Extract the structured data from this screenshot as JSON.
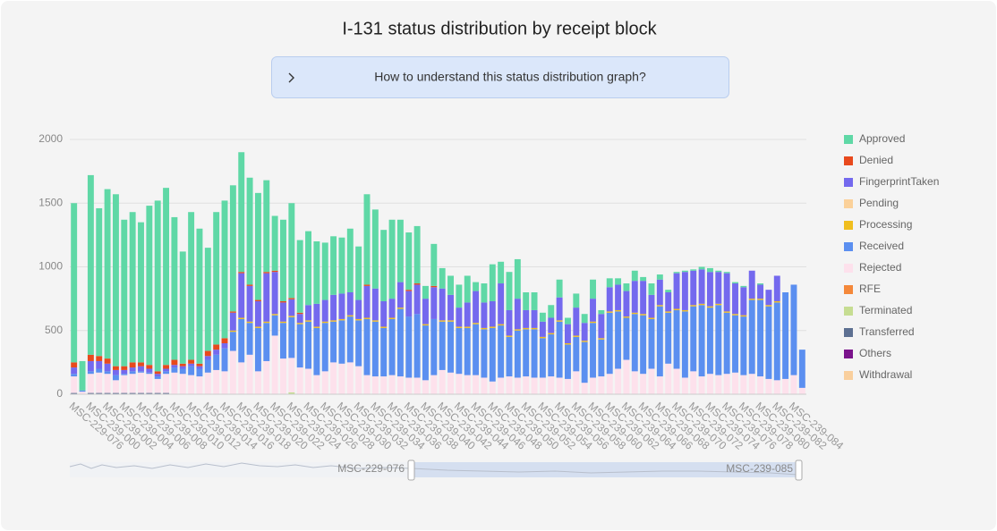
{
  "chart_data": {
    "type": "bar",
    "stacked": true,
    "title": "I-131 status distribution by receipt block",
    "help_text": "How to understand this status distribution graph?",
    "categories": [
      "MSC-229-076",
      null,
      "MSC-239-000",
      null,
      "MSC-239-002",
      null,
      "MSC-239-004",
      null,
      "MSC-239-006",
      null,
      "MSC-239-008",
      null,
      "MSC-239-010",
      null,
      "MSC-239-012",
      null,
      "MSC-239-014",
      null,
      "MSC-239-016",
      null,
      "MSC-239-018",
      null,
      "MSC-239-020",
      null,
      "MSC-239-022",
      null,
      "MSC-239-024",
      null,
      "MSC-239-026",
      null,
      "MSC-239-028",
      null,
      "MSC-239-030",
      null,
      "MSC-239-032",
      null,
      "MSC-239-034",
      null,
      "MSC-239-036",
      null,
      "MSC-239-038",
      null,
      "MSC-239-040",
      null,
      "MSC-239-042",
      null,
      "MSC-239-044",
      null,
      "MSC-239-046",
      null,
      "MSC-239-048",
      null,
      "MSC-239-050",
      null,
      "MSC-239-052",
      null,
      "MSC-239-054",
      null,
      "MSC-239-056",
      null,
      "MSC-239-058",
      null,
      "MSC-239-060",
      null,
      "MSC-239-062",
      null,
      "MSC-239-064",
      null,
      "MSC-239-066",
      null,
      "MSC-239-068",
      null,
      "MSC-239-070",
      null,
      "MSC-239-072",
      null,
      "MSC-239-074",
      null,
      "MSC-239-076",
      null,
      "MSC-239-078",
      null,
      "MSC-239-080",
      null,
      "MSC-239-082",
      null,
      "MSC-239-084",
      "MSC-239-085"
    ],
    "series": [
      {
        "name": "Approved",
        "color": "#5fd8a6",
        "values": [
          1250,
          230,
          1410,
          1160,
          1330,
          1350,
          1150,
          1180,
          1100,
          1250,
          1340,
          1390,
          1120,
          880,
          1160,
          1060,
          810,
          1040,
          1080,
          990,
          940,
          840,
          840,
          720,
          430,
          640,
          745,
          570,
          580,
          490,
          450,
          460,
          440,
          500,
          420,
          710,
          620,
          560,
          620,
          490,
          450,
          450,
          100,
          330,
          160,
          150,
          180,
          210,
          70,
          150,
          290,
          170,
          300,
          310,
          140,
          140,
          70,
          100,
          140,
          50,
          110,
          70,
          150,
          30,
          70,
          50,
          60,
          80,
          30,
          90,
          40,
          20,
          10,
          10,
          10,
          20,
          30,
          10,
          10,
          10,
          10,
          0,
          10,
          0,
          0,
          0,
          0,
          0
        ]
      },
      {
        "name": "Denied",
        "color": "#e8491d",
        "values": [
          40,
          0,
          50,
          40,
          40,
          30,
          30,
          40,
          30,
          30,
          20,
          30,
          40,
          20,
          30,
          20,
          40,
          40,
          40,
          10,
          10,
          10,
          10,
          10,
          10,
          10,
          10,
          10,
          0,
          0,
          0,
          0,
          0,
          0,
          0,
          10,
          0,
          0,
          0,
          0,
          10,
          10,
          0,
          10,
          0,
          0,
          0,
          0,
          0,
          0,
          0,
          0,
          0,
          0,
          0,
          0,
          0,
          0,
          0,
          0,
          0,
          0,
          0,
          0,
          0,
          0,
          0,
          0,
          0,
          0,
          0,
          0,
          0,
          0,
          0,
          0,
          0,
          0,
          0,
          0,
          0,
          0,
          0,
          0,
          0,
          0,
          0,
          0
        ]
      },
      {
        "name": "FingerprintTaken",
        "color": "#7469ee",
        "values": [
          50,
          0,
          80,
          60,
          60,
          40,
          30,
          30,
          40,
          30,
          20,
          20,
          20,
          20,
          20,
          20,
          30,
          40,
          40,
          140,
          350,
          280,
          200,
          380,
          330,
          150,
          130,
          70,
          120,
          180,
          170,
          200,
          200,
          180,
          150,
          250,
          250,
          200,
          150,
          200,
          200,
          230,
          200,
          250,
          250,
          200,
          150,
          190,
          250,
          200,
          200,
          320,
          200,
          240,
          140,
          140,
          120,
          120,
          180,
          150,
          220,
          140,
          180,
          190,
          190,
          200,
          200,
          250,
          260,
          180,
          200,
          150,
          280,
          300,
          270,
          270,
          270,
          250,
          300,
          240,
          220,
          220,
          110,
          120,
          200,
          0,
          0,
          0
        ]
      },
      {
        "name": "Pending",
        "color": "#fbd19a",
        "values": [
          0,
          0,
          0,
          0,
          0,
          0,
          0,
          0,
          0,
          0,
          0,
          0,
          0,
          0,
          0,
          0,
          0,
          0,
          0,
          0,
          0,
          0,
          0,
          0,
          0,
          0,
          0,
          0,
          0,
          0,
          0,
          0,
          0,
          0,
          0,
          0,
          0,
          0,
          0,
          0,
          0,
          0,
          0,
          0,
          0,
          0,
          0,
          0,
          0,
          0,
          0,
          0,
          0,
          0,
          0,
          0,
          0,
          0,
          0,
          0,
          0,
          0,
          0,
          0,
          0,
          0,
          0,
          0,
          0,
          0,
          0,
          0,
          0,
          0,
          0,
          0,
          0,
          0,
          0,
          0,
          0,
          0,
          0,
          0,
          0,
          0,
          0,
          0
        ]
      },
      {
        "name": "Processing",
        "color": "#f0be1e",
        "values": [
          0,
          0,
          0,
          0,
          0,
          0,
          0,
          0,
          0,
          0,
          0,
          0,
          0,
          0,
          0,
          0,
          0,
          0,
          0,
          10,
          10,
          10,
          10,
          10,
          10,
          10,
          10,
          10,
          10,
          10,
          10,
          10,
          10,
          10,
          10,
          10,
          10,
          10,
          10,
          10,
          0,
          0,
          10,
          0,
          10,
          10,
          10,
          10,
          10,
          10,
          10,
          10,
          10,
          10,
          10,
          10,
          10,
          10,
          10,
          10,
          10,
          10,
          10,
          10,
          10,
          10,
          10,
          10,
          10,
          10,
          10,
          10,
          10,
          10,
          10,
          10,
          10,
          10,
          10,
          10,
          10,
          10,
          10,
          10,
          10,
          0,
          0,
          0
        ]
      },
      {
        "name": "Received",
        "color": "#5b8ff0",
        "values": [
          20,
          10,
          20,
          30,
          20,
          40,
          10,
          20,
          10,
          10,
          20,
          20,
          40,
          40,
          70,
          60,
          100,
          120,
          180,
          150,
          340,
          250,
          340,
          300,
          160,
          280,
          320,
          340,
          370,
          370,
          380,
          320,
          340,
          360,
          360,
          440,
          430,
          380,
          440,
          530,
          480,
          500,
          430,
          440,
          380,
          400,
          360,
          370,
          400,
          380,
          420,
          410,
          310,
          370,
          370,
          380,
          310,
          330,
          440,
          270,
          270,
          320,
          430,
          290,
          480,
          450,
          330,
          450,
          460,
          390,
          550,
          400,
          460,
          520,
          510,
          560,
          520,
          550,
          480,
          450,
          460,
          580,
          600,
          570,
          610,
          680,
          710,
          300
        ]
      },
      {
        "name": "Rejected",
        "color": "#fde1ec",
        "values": [
          130,
          20,
          150,
          160,
          150,
          100,
          140,
          150,
          160,
          150,
          110,
          150,
          170,
          160,
          150,
          140,
          170,
          190,
          180,
          340,
          250,
          310,
          180,
          260,
          460,
          280,
          270,
          210,
          200,
          150,
          180,
          250,
          240,
          250,
          220,
          150,
          140,
          140,
          150,
          140,
          130,
          130,
          110,
          150,
          190,
          170,
          160,
          150,
          150,
          130,
          100,
          130,
          140,
          130,
          140,
          130,
          130,
          140,
          130,
          120,
          180,
          90,
          130,
          140,
          160,
          200,
          270,
          180,
          160,
          200,
          140,
          240,
          200,
          130,
          180,
          140,
          160,
          150,
          160,
          170,
          150,
          160,
          140,
          120,
          110,
          120,
          150,
          50
        ]
      },
      {
        "name": "RFE",
        "color": "#f4883a",
        "values": [
          0,
          0,
          0,
          0,
          0,
          0,
          0,
          0,
          0,
          0,
          0,
          0,
          0,
          0,
          0,
          0,
          0,
          0,
          0,
          0,
          0,
          0,
          0,
          0,
          0,
          0,
          0,
          0,
          0,
          0,
          0,
          0,
          0,
          0,
          0,
          0,
          0,
          0,
          0,
          0,
          0,
          0,
          0,
          0,
          0,
          0,
          0,
          0,
          0,
          0,
          0,
          0,
          0,
          0,
          0,
          0,
          0,
          0,
          0,
          0,
          0,
          0,
          0,
          0,
          0,
          0,
          0,
          0,
          0,
          0,
          0,
          0,
          0,
          0,
          0,
          0,
          0,
          0,
          0,
          0,
          0,
          0,
          0,
          0,
          0,
          0,
          0,
          0
        ]
      },
      {
        "name": "Terminated",
        "color": "#c6dd92",
        "values": [
          0,
          0,
          0,
          0,
          0,
          0,
          0,
          0,
          0,
          0,
          0,
          0,
          0,
          0,
          0,
          0,
          0,
          0,
          0,
          0,
          0,
          0,
          0,
          0,
          0,
          0,
          15,
          0,
          0,
          0,
          0,
          0,
          0,
          0,
          0,
          0,
          0,
          0,
          0,
          0,
          0,
          0,
          0,
          0,
          0,
          0,
          0,
          0,
          0,
          0,
          0,
          0,
          0,
          0,
          0,
          0,
          0,
          0,
          0,
          0,
          0,
          0,
          0,
          0,
          0,
          0,
          0,
          0,
          0,
          0,
          0,
          0,
          0,
          0,
          0,
          0,
          0,
          0,
          0,
          0,
          0,
          0,
          0,
          0,
          0,
          0,
          0,
          0
        ]
      },
      {
        "name": "Transferred",
        "color": "#5d7092",
        "values": [
          10,
          0,
          10,
          10,
          10,
          10,
          10,
          10,
          10,
          10,
          10,
          10,
          0,
          0,
          0,
          0,
          0,
          0,
          0,
          0,
          0,
          0,
          0,
          0,
          0,
          0,
          0,
          0,
          0,
          0,
          0,
          0,
          0,
          0,
          0,
          0,
          0,
          0,
          0,
          0,
          0,
          0,
          0,
          0,
          0,
          0,
          0,
          0,
          0,
          0,
          0,
          0,
          0,
          0,
          0,
          0,
          0,
          0,
          0,
          0,
          0,
          0,
          0,
          0,
          0,
          0,
          0,
          0,
          0,
          0,
          0,
          0,
          0,
          0,
          0,
          0,
          0,
          0,
          0,
          0,
          0,
          0,
          0,
          0,
          0,
          0,
          0,
          0
        ]
      },
      {
        "name": "Others",
        "color": "#7b138c",
        "values": [
          0,
          0,
          0,
          0,
          0,
          0,
          0,
          0,
          0,
          0,
          0,
          0,
          0,
          0,
          0,
          0,
          0,
          0,
          0,
          0,
          0,
          0,
          0,
          0,
          0,
          0,
          0,
          0,
          0,
          0,
          0,
          0,
          0,
          0,
          0,
          0,
          0,
          0,
          0,
          0,
          0,
          0,
          0,
          0,
          0,
          0,
          0,
          0,
          0,
          0,
          0,
          0,
          0,
          0,
          0,
          0,
          0,
          0,
          0,
          0,
          0,
          0,
          0,
          0,
          0,
          0,
          0,
          0,
          0,
          0,
          0,
          0,
          0,
          0,
          0,
          0,
          0,
          0,
          0,
          0,
          0,
          0,
          0,
          0,
          0,
          0,
          0,
          0
        ]
      },
      {
        "name": "Withdrawal",
        "color": "#f9cf9d",
        "values": [
          0,
          0,
          0,
          0,
          0,
          0,
          0,
          0,
          0,
          0,
          0,
          0,
          0,
          0,
          0,
          0,
          0,
          0,
          0,
          0,
          0,
          0,
          0,
          0,
          0,
          0,
          0,
          0,
          0,
          0,
          0,
          0,
          0,
          0,
          0,
          0,
          0,
          0,
          0,
          0,
          0,
          0,
          0,
          0,
          0,
          0,
          0,
          0,
          0,
          0,
          0,
          0,
          0,
          0,
          0,
          0,
          0,
          0,
          0,
          0,
          0,
          0,
          0,
          0,
          0,
          0,
          0,
          0,
          0,
          0,
          0,
          0,
          0,
          0,
          0,
          0,
          0,
          0,
          0,
          0,
          0,
          0,
          0,
          0,
          0,
          0,
          0,
          0
        ]
      }
    ],
    "ylim": [
      0,
      2000
    ],
    "yticks": [
      0,
      500,
      1000,
      1500,
      2000
    ],
    "grid": true,
    "legend": "right"
  }
}
